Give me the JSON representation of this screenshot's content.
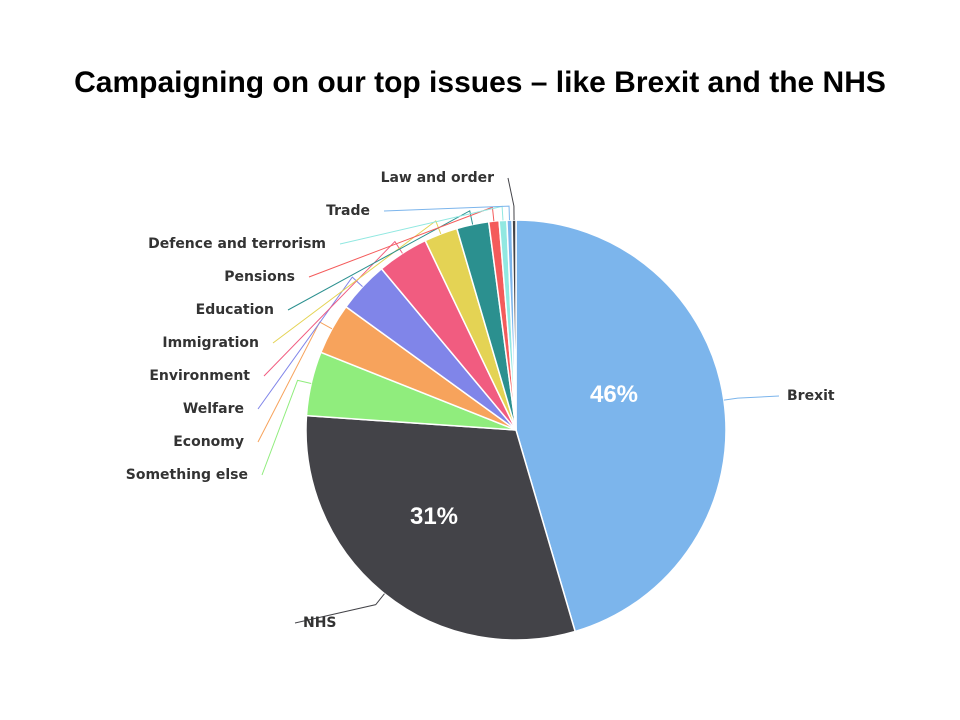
{
  "title": "Campaigning on our top issues – like Brexit and the NHS",
  "chart_data": {
    "type": "pie",
    "title": "Campaigning on our top issues – like Brexit and the NHS",
    "unit": "%",
    "start_angle_deg": 0,
    "direction": "clockwise",
    "slices": [
      {
        "label": "Brexit",
        "value": 46,
        "color": "#7cb5ec",
        "data_label": "46%"
      },
      {
        "label": "NHS",
        "value": 31,
        "color": "#434348",
        "data_label": "31%"
      },
      {
        "label": "Something else",
        "value": 5,
        "color": "#90ed7d",
        "data_label": ""
      },
      {
        "label": "Economy",
        "value": 4,
        "color": "#f7a35c",
        "data_label": ""
      },
      {
        "label": "Welfare",
        "value": 4,
        "color": "#8085e9",
        "data_label": ""
      },
      {
        "label": "Environment",
        "value": 4,
        "color": "#f15c80",
        "data_label": ""
      },
      {
        "label": "Immigration",
        "value": 2.6,
        "color": "#e4d354",
        "data_label": ""
      },
      {
        "label": "Education",
        "value": 2.5,
        "color": "#2b908f",
        "data_label": ""
      },
      {
        "label": "Pensions",
        "value": 0.8,
        "color": "#f45b5b",
        "data_label": ""
      },
      {
        "label": "Defence and terrorism",
        "value": 0.6,
        "color": "#91e8e1",
        "data_label": ""
      },
      {
        "label": "Trade",
        "value": 0.4,
        "color": "#7cb5ec",
        "data_label": ""
      },
      {
        "label": "Law and order",
        "value": 0.3,
        "color": "#434348",
        "data_label": ""
      }
    ]
  }
}
